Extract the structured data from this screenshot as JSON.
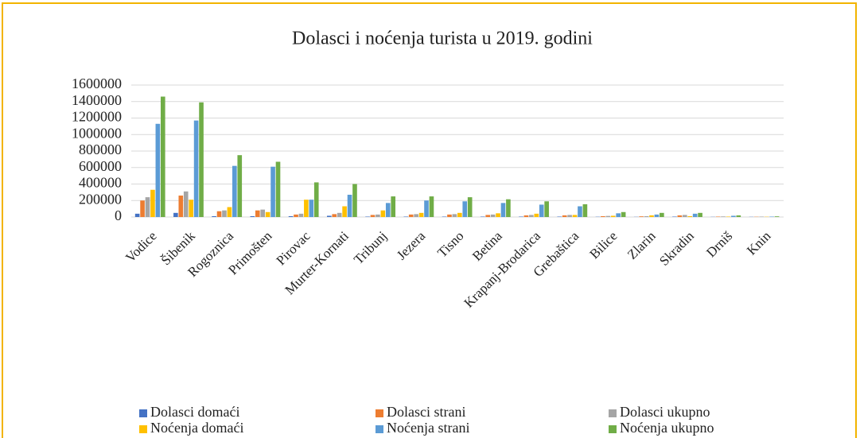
{
  "chart_data": {
    "type": "bar",
    "title": "Dolasci i noćenja turista u 2019. godini",
    "categories": [
      "Vodice",
      "Šibenik",
      "Rogoznica",
      "Primošten",
      "Pirovac",
      "Murter-Kornati",
      "Tribunj",
      "Jezera",
      "Tisno",
      "Betina",
      "Krapanj-Brodarica",
      "Grebaštica",
      "Bilice",
      "Zlarin",
      "Skradin",
      "Drniš",
      "Knin"
    ],
    "series": [
      {
        "name": "Dolasci domaći",
        "color": "#4472c4",
        "values": [
          40000,
          50000,
          10000,
          10000,
          10000,
          15000,
          5000,
          5000,
          5000,
          5000,
          5000,
          5000,
          3000,
          2000,
          5000,
          2000,
          2000
        ]
      },
      {
        "name": "Dolasci strani",
        "color": "#ed7d31",
        "values": [
          200000,
          260000,
          70000,
          80000,
          30000,
          35000,
          25000,
          30000,
          30000,
          25000,
          20000,
          20000,
          10000,
          8000,
          20000,
          5000,
          3000
        ]
      },
      {
        "name": "Dolasci ukupno",
        "color": "#a5a5a5",
        "values": [
          240000,
          310000,
          80000,
          90000,
          40000,
          50000,
          30000,
          35000,
          35000,
          30000,
          25000,
          25000,
          13000,
          10000,
          25000,
          7000,
          5000
        ]
      },
      {
        "name": "Noćenja domaći",
        "color": "#ffc000",
        "values": [
          330000,
          210000,
          120000,
          60000,
          210000,
          130000,
          80000,
          50000,
          50000,
          45000,
          40000,
          25000,
          15000,
          20000,
          10000,
          5000,
          3000
        ]
      },
      {
        "name": "Noćenja strani",
        "color": "#5b9bd5",
        "values": [
          1130000,
          1170000,
          620000,
          610000,
          210000,
          270000,
          170000,
          200000,
          190000,
          170000,
          150000,
          130000,
          45000,
          30000,
          40000,
          15000,
          5000
        ]
      },
      {
        "name": "Noćenja ukupno",
        "color": "#70ad47",
        "values": [
          1460000,
          1390000,
          750000,
          670000,
          420000,
          400000,
          250000,
          250000,
          240000,
          215000,
          190000,
          155000,
          60000,
          50000,
          50000,
          20000,
          8000
        ]
      }
    ],
    "ylim": [
      0,
      1600000
    ],
    "yticks": [
      0,
      200000,
      400000,
      600000,
      800000,
      1000000,
      1200000,
      1400000,
      1600000
    ],
    "grid": true
  }
}
